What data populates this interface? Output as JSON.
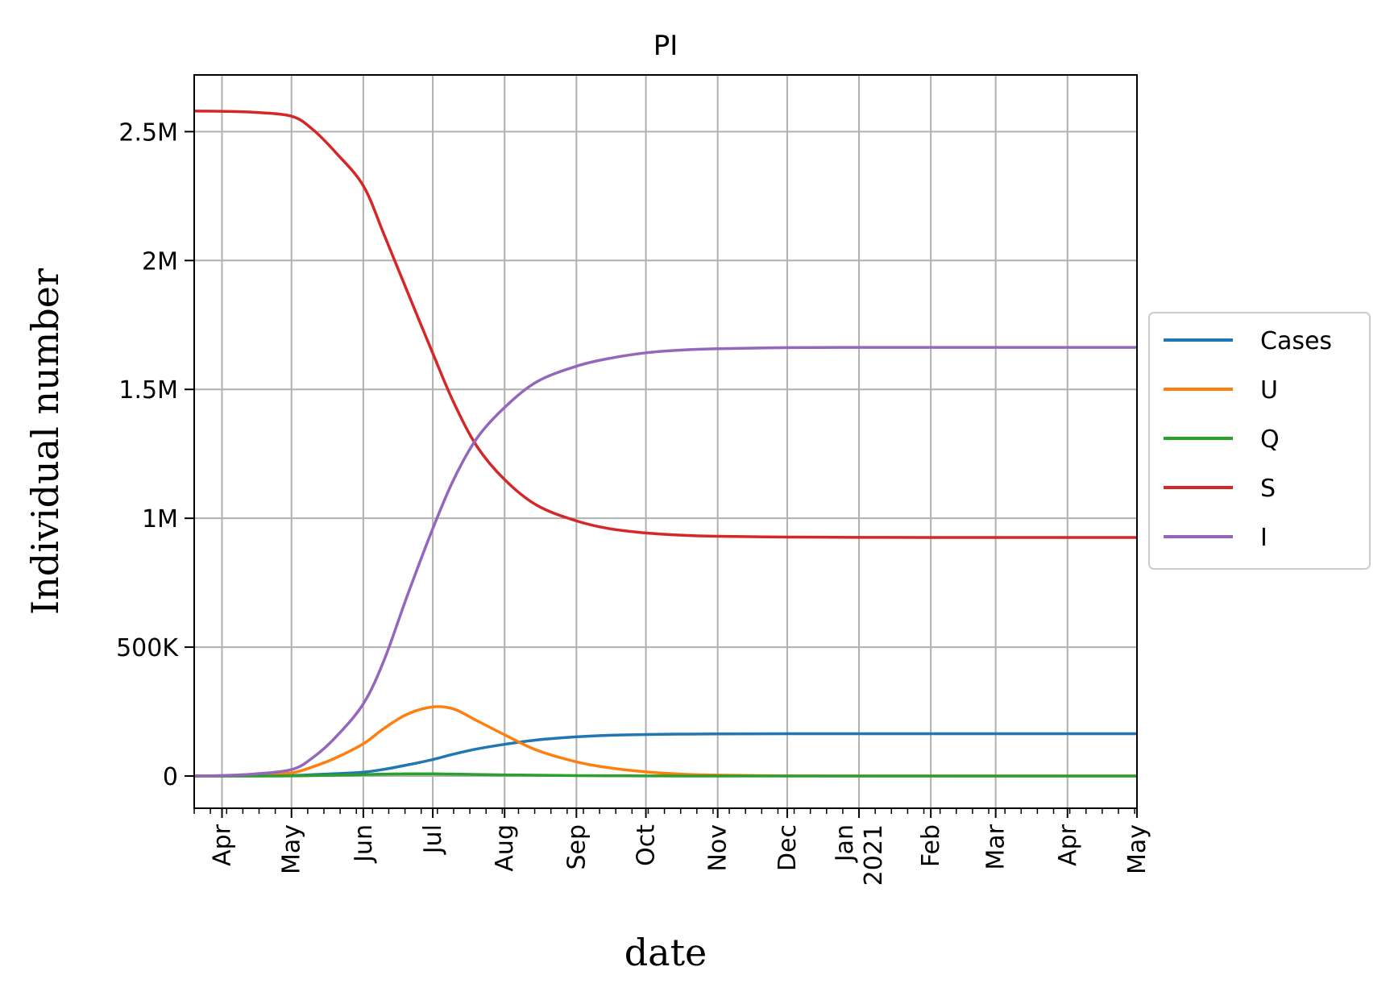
{
  "chart_data": {
    "type": "line",
    "title": "PI",
    "xlabel": "date",
    "ylabel": "Individual number",
    "x_start": "2020-03-20",
    "x_end": "2021-05-01",
    "x_ticks": [
      {
        "date": "2020-04-01",
        "label": "Apr"
      },
      {
        "date": "2020-05-01",
        "label": "May"
      },
      {
        "date": "2020-06-01",
        "label": "Jun"
      },
      {
        "date": "2020-07-01",
        "label": "Jul"
      },
      {
        "date": "2020-08-01",
        "label": "Aug"
      },
      {
        "date": "2020-09-01",
        "label": "Sep"
      },
      {
        "date": "2020-10-01",
        "label": "Oct"
      },
      {
        "date": "2020-11-01",
        "label": "Nov"
      },
      {
        "date": "2020-12-01",
        "label": "Dec"
      },
      {
        "date": "2021-01-01",
        "label": "Jan",
        "label2": "2021"
      },
      {
        "date": "2021-02-01",
        "label": "Feb"
      },
      {
        "date": "2021-03-01",
        "label": "Mar"
      },
      {
        "date": "2021-04-01",
        "label": "Apr"
      },
      {
        "date": "2021-05-01",
        "label": "May"
      }
    ],
    "ylim": [
      -125000,
      2720000
    ],
    "y_ticks": [
      {
        "value": 0,
        "label": "0"
      },
      {
        "value": 500000,
        "label": "500K"
      },
      {
        "value": 1000000,
        "label": "1M"
      },
      {
        "value": 1500000,
        "label": "1.5M"
      },
      {
        "value": 2000000,
        "label": "2M"
      },
      {
        "value": 2500000,
        "label": "2.5M"
      }
    ],
    "grid": true,
    "legend_position": "right",
    "x": [
      "2020-03-20",
      "2020-04-01",
      "2020-04-15",
      "2020-05-01",
      "2020-05-10",
      "2020-05-20",
      "2020-06-01",
      "2020-06-10",
      "2020-06-20",
      "2020-07-01",
      "2020-07-10",
      "2020-07-20",
      "2020-08-01",
      "2020-08-15",
      "2020-09-01",
      "2020-09-15",
      "2020-10-01",
      "2020-10-15",
      "2020-11-01",
      "2020-12-01",
      "2021-01-01",
      "2021-02-01",
      "2021-03-01",
      "2021-04-01",
      "2021-05-01"
    ],
    "series": [
      {
        "name": "Cases",
        "color": "#1f77b4",
        "values": [
          0,
          0,
          300,
          2000,
          5000,
          9000,
          15000,
          26000,
          43000,
          64000,
          85000,
          105000,
          123000,
          140000,
          152000,
          158000,
          161000,
          162500,
          163500,
          164000,
          164000,
          164000,
          164000,
          164000,
          164000
        ]
      },
      {
        "name": "U",
        "color": "#ff7f0e",
        "values": [
          0,
          200,
          2000,
          12000,
          35000,
          70000,
          125000,
          185000,
          240000,
          268000,
          260000,
          215000,
          160000,
          100000,
          55000,
          32000,
          16000,
          8000,
          3500,
          600,
          100,
          0,
          0,
          0,
          0
        ]
      },
      {
        "name": "Q",
        "color": "#2ca02c",
        "values": [
          0,
          0,
          100,
          500,
          1500,
          3000,
          5500,
          7500,
          8500,
          8500,
          7500,
          6000,
          4500,
          3000,
          1800,
          1000,
          500,
          250,
          100,
          0,
          0,
          0,
          0,
          0,
          0
        ]
      },
      {
        "name": "S",
        "color": "#d62728",
        "values": [
          2580000,
          2579000,
          2575000,
          2560000,
          2510000,
          2420000,
          2290000,
          2100000,
          1880000,
          1640000,
          1450000,
          1280000,
          1150000,
          1050000,
          990000,
          960000,
          943000,
          935000,
          930000,
          927000,
          926000,
          925500,
          925500,
          925500,
          925500
        ]
      },
      {
        "name": "I",
        "color": "#9467bd",
        "values": [
          0,
          2000,
          8000,
          25000,
          70000,
          150000,
          280000,
          450000,
          700000,
          960000,
          1150000,
          1310000,
          1430000,
          1530000,
          1590000,
          1620000,
          1642000,
          1652000,
          1658000,
          1662000,
          1663000,
          1663000,
          1663000,
          1663000,
          1663000
        ]
      }
    ]
  }
}
